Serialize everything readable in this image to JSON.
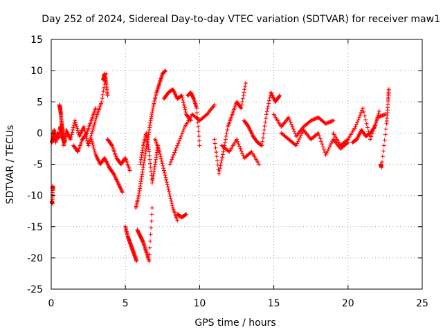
{
  "chart_data": {
    "type": "scatter",
    "title": "Day 252 of 2024, Sidereal Day-to-day VTEC variation (SDTVAR) for receiver maw1",
    "xlabel": "GPS time / hours",
    "ylabel": "SDTVAR / TECUs",
    "xlim": [
      0,
      25
    ],
    "ylim": [
      -25,
      15
    ],
    "xticks": [
      0,
      5,
      10,
      15,
      20,
      25
    ],
    "yticks": [
      -25,
      -20,
      -15,
      -10,
      -5,
      0,
      5,
      10,
      15
    ],
    "grid": true,
    "marker": "+",
    "color": "#ff0000",
    "series": [
      {
        "name": "s1",
        "x": [
          0.05,
          0.1,
          0.15,
          0.2,
          0.3,
          0.4,
          0.5,
          0.6,
          0.7,
          0.8,
          0.9,
          1.0
        ],
        "y": [
          -1.5,
          -1.0,
          -0.5,
          0.5,
          -1.5,
          0.0,
          -0.8,
          1.0,
          0.0,
          -1.0,
          -1.5,
          0.0
        ]
      },
      {
        "name": "s2",
        "x": [
          0.05,
          0.08,
          0.1,
          0.12
        ],
        "y": [
          -11.0,
          -11.3,
          -8.5,
          -9.0
        ]
      },
      {
        "name": "s3",
        "x": [
          0.55,
          0.6,
          0.65,
          0.7,
          0.75,
          0.8,
          0.85
        ],
        "y": [
          4.5,
          4.0,
          3.0,
          1.5,
          0.5,
          -0.5,
          -2.0
        ]
      },
      {
        "name": "s4",
        "x": [
          1.0,
          1.3,
          1.6,
          1.9,
          2.2,
          2.5,
          2.8,
          3.1,
          3.4,
          3.7
        ],
        "y": [
          0.5,
          -1.0,
          2.0,
          -0.5,
          1.0,
          -2.0,
          0.5,
          3.0,
          5.0,
          9.5
        ]
      },
      {
        "name": "s5",
        "x": [
          1.5,
          1.8,
          2.1,
          2.4,
          2.7,
          3.0
        ],
        "y": [
          -2.0,
          -3.0,
          -1.0,
          0.0,
          2.0,
          4.0
        ]
      },
      {
        "name": "s6",
        "x": [
          2.7,
          3.0,
          3.3,
          3.6,
          3.9,
          4.2,
          4.5,
          4.8
        ],
        "y": [
          -1.0,
          -3.5,
          -5.0,
          -4.0,
          -5.5,
          -6.5,
          -8.0,
          -9.5
        ]
      },
      {
        "name": "s7",
        "x": [
          3.5,
          3.6,
          3.7,
          3.8
        ],
        "y": [
          8.5,
          9.5,
          8.0,
          6.0
        ]
      },
      {
        "name": "s8",
        "x": [
          3.8,
          4.1,
          4.4,
          4.7,
          5.0,
          5.3
        ],
        "y": [
          -1.0,
          -2.0,
          -4.0,
          -5.0,
          -4.0,
          -6.0
        ]
      },
      {
        "name": "s9",
        "x": [
          5.0,
          5.15,
          5.3,
          5.45,
          5.6,
          5.75
        ],
        "y": [
          -15.0,
          -16.5,
          -17.5,
          -18.5,
          -19.5,
          -20.5
        ]
      },
      {
        "name": "s10",
        "x": [
          5.8,
          6.0,
          6.2,
          6.4,
          6.6,
          6.8
        ],
        "y": [
          -15.5,
          -16.5,
          -17.5,
          -19.0,
          -20.5,
          -12.0
        ]
      },
      {
        "name": "s11",
        "x": [
          5.7,
          5.9,
          6.1,
          6.3,
          6.5,
          6.7,
          6.9,
          7.1,
          7.3,
          7.5,
          7.7
        ],
        "y": [
          -12.0,
          -10.0,
          -7.0,
          -4.0,
          -1.0,
          2.0,
          4.5,
          6.5,
          8.0,
          9.5,
          10.0
        ]
      },
      {
        "name": "s12",
        "x": [
          6.0,
          6.2,
          6.4,
          6.6,
          6.8,
          7.0,
          7.2
        ],
        "y": [
          -5.0,
          -2.0,
          0.0,
          -3.0,
          -8.0,
          -5.0,
          -2.0
        ]
      },
      {
        "name": "s13",
        "x": [
          7.0,
          7.3,
          7.6,
          7.9,
          8.2,
          8.5
        ],
        "y": [
          -1.0,
          -3.0,
          -6.0,
          -9.0,
          -12.0,
          -14.0
        ]
      },
      {
        "name": "s14",
        "x": [
          7.6,
          7.9,
          8.2,
          8.5,
          8.8,
          9.1,
          9.4
        ],
        "y": [
          5.5,
          6.5,
          7.0,
          5.5,
          6.0,
          3.0,
          2.0
        ]
      },
      {
        "name": "s15",
        "x": [
          8.5,
          8.8,
          9.1
        ],
        "y": [
          -13.0,
          -13.5,
          -13.0
        ]
      },
      {
        "name": "s16",
        "x": [
          8.0,
          8.5,
          9.0,
          9.5,
          10.0,
          10.5,
          11.0
        ],
        "y": [
          -5.0,
          -2.0,
          1.0,
          3.0,
          2.0,
          3.0,
          4.5
        ]
      },
      {
        "name": "s17",
        "x": [
          9.2,
          9.4,
          9.6,
          9.8,
          10.0
        ],
        "y": [
          6.0,
          6.5,
          5.5,
          4.0,
          -2.0
        ]
      },
      {
        "name": "s18",
        "x": [
          11.0,
          11.3,
          11.6,
          11.9,
          12.2,
          12.5,
          12.8,
          13.1
        ],
        "y": [
          -1.0,
          -6.5,
          -3.0,
          1.0,
          3.0,
          5.0,
          4.0,
          8.0
        ]
      },
      {
        "name": "s19",
        "x": [
          11.5,
          12.0,
          12.5,
          13.0,
          13.5,
          14.0
        ],
        "y": [
          -2.0,
          -3.0,
          -1.0,
          -4.0,
          -3.0,
          -5.0
        ]
      },
      {
        "name": "s20",
        "x": [
          13.0,
          13.3,
          13.6,
          13.9,
          14.2,
          14.5,
          14.8,
          15.1,
          15.4
        ],
        "y": [
          2.0,
          1.0,
          -0.5,
          -1.5,
          -2.0,
          3.0,
          6.5,
          5.0,
          6.0
        ]
      },
      {
        "name": "s21",
        "x": [
          15.0,
          15.5,
          16.0,
          16.5,
          17.0,
          17.5,
          18.0,
          18.5,
          19.0
        ],
        "y": [
          3.0,
          1.0,
          2.5,
          -0.5,
          1.0,
          2.0,
          2.5,
          1.5,
          2.0
        ]
      },
      {
        "name": "s22",
        "x": [
          15.5,
          16.0,
          16.5,
          17.0,
          17.5,
          18.0,
          18.5,
          19.0,
          19.5,
          20.0
        ],
        "y": [
          0.0,
          -1.0,
          -2.0,
          0.5,
          -1.0,
          0.0,
          -3.5,
          -1.0,
          -2.5,
          -1.5
        ]
      },
      {
        "name": "s23",
        "x": [
          19.0,
          19.5,
          20.0,
          20.5,
          21.0,
          21.5,
          22.0,
          22.5
        ],
        "y": [
          0.0,
          -2.0,
          -1.0,
          1.0,
          4.0,
          -1.0,
          2.5,
          3.0
        ]
      },
      {
        "name": "s24",
        "x": [
          20.3,
          20.6,
          20.9,
          21.2,
          21.5,
          21.8,
          22.1
        ],
        "y": [
          -1.5,
          -1.0,
          0.5,
          -0.5,
          0.0,
          1.0,
          3.5
        ]
      },
      {
        "name": "s25",
        "x": [
          22.2,
          22.25,
          22.6,
          22.7,
          22.75
        ],
        "y": [
          -5.0,
          -5.5,
          1.5,
          5.0,
          7.0
        ]
      }
    ]
  }
}
